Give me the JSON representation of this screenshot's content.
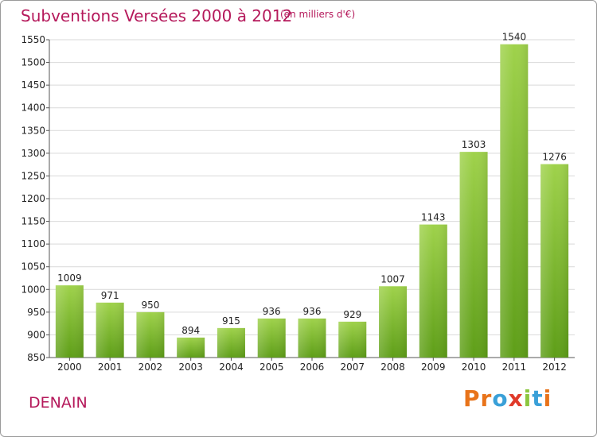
{
  "header": {
    "title": "Subventions Versées 2000 à 2012",
    "subtitle": "(en milliers d'€)"
  },
  "footer": {
    "place": "DENAIN",
    "logo": [
      "P",
      "r",
      "o",
      "x",
      "i",
      "t",
      "i"
    ],
    "logo_colors": [
      "#e8731a",
      "#e8731a",
      "#3aa0d8",
      "#e03a2a",
      "#8cc63f",
      "#3aa0d8",
      "#e8731a"
    ]
  },
  "chart_data": {
    "type": "bar",
    "title": "Subventions Versées 2000 à 2012",
    "subtitle": "(en milliers d'€)",
    "categories": [
      "2000",
      "2001",
      "2002",
      "2003",
      "2004",
      "2005",
      "2006",
      "2007",
      "2008",
      "2009",
      "2010",
      "2011",
      "2012"
    ],
    "values": [
      1009,
      971,
      950,
      894,
      915,
      936,
      936,
      929,
      1007,
      1143,
      1303,
      1540,
      1276
    ],
    "ylim": [
      850,
      1550
    ],
    "yticks": [
      850,
      900,
      950,
      1000,
      1050,
      1100,
      1150,
      1200,
      1250,
      1300,
      1350,
      1400,
      1450,
      1500,
      1550
    ],
    "grid": true,
    "legend": "none",
    "bar_color_top": "#9fd24b",
    "bar_color_bottom": "#5e9e18",
    "grid_color": "#d9d9d9"
  }
}
